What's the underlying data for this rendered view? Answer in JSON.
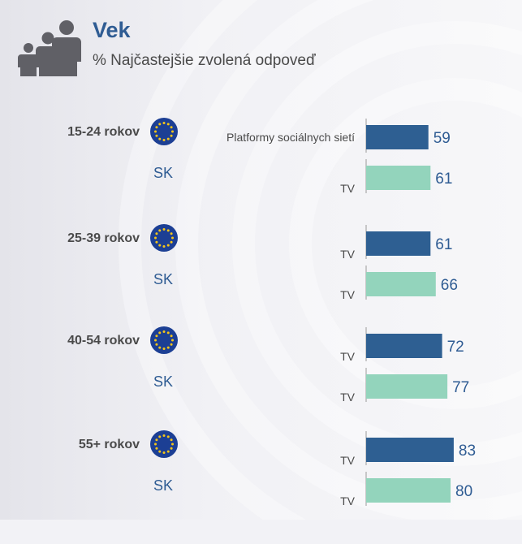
{
  "header": {
    "title": "Vek",
    "subtitle": "% Najčastejšie zvolená odpoveď",
    "icon": "people-silhouettes-icon"
  },
  "colors": {
    "eu_bar": "#2e5f92",
    "sk_bar": "#93d4bc",
    "title": "#2f5c93",
    "value_text": "#2f5c93",
    "label_text": "#4a4a4a",
    "eu_flag": "#1c3f94",
    "eu_star": "#f5c518"
  },
  "chart_data": {
    "type": "bar",
    "orientation": "horizontal",
    "title": "Vek",
    "subtitle": "% Najčastejšie zvolená odpoveď",
    "groups": [
      {
        "age": "15-24 rokov",
        "eu": {
          "answer": "Platformy sociálnych sietí",
          "value": 59
        },
        "sk": {
          "label": "SK",
          "answer": "TV",
          "value": 61
        }
      },
      {
        "age": "25-39 rokov",
        "eu": {
          "answer": "TV",
          "value": 61
        },
        "sk": {
          "label": "SK",
          "answer": "TV",
          "value": 66
        }
      },
      {
        "age": "40-54 rokov",
        "eu": {
          "answer": "TV",
          "value": 72
        },
        "sk": {
          "label": "SK",
          "answer": "TV",
          "value": 77
        }
      },
      {
        "age": "55+ rokov",
        "eu": {
          "answer": "TV",
          "value": 83
        },
        "sk": {
          "label": "SK",
          "answer": "TV",
          "value": 80
        }
      }
    ]
  }
}
